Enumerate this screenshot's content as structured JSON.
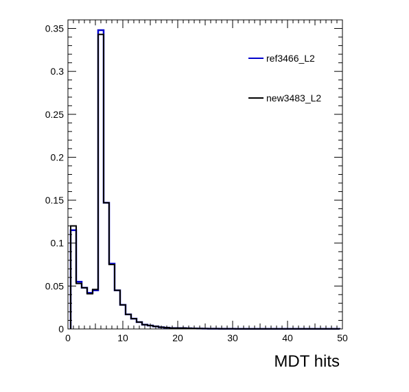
{
  "chart_data": {
    "type": "histogram",
    "title": "",
    "xlabel": "MDT hits",
    "ylabel": "",
    "xlim": [
      0,
      50
    ],
    "ylim": [
      0,
      0.36
    ],
    "bin_width": 1,
    "x_ticks": [
      0,
      10,
      20,
      30,
      40,
      50
    ],
    "x_tick_labels": [
      "0",
      "10",
      "20",
      "30",
      "40",
      "50"
    ],
    "y_ticks": [
      0,
      0.05,
      0.1,
      0.15,
      0.2,
      0.25,
      0.3,
      0.35
    ],
    "y_tick_labels": [
      "0",
      "0.05",
      "0.1",
      "0.15",
      "0.2",
      "0.25",
      "0.3",
      "0.35"
    ],
    "grid": false,
    "legend_position": "top-right",
    "series": [
      {
        "name": "ref3466_L2",
        "color": "#0000cc",
        "values": [
          0.115,
          0.055,
          0.048,
          0.042,
          0.045,
          0.348,
          0.147,
          0.076,
          0.045,
          0.028,
          0.017,
          0.012,
          0.008,
          0.005,
          0.004,
          0.003,
          0.002,
          0.0015,
          0.001,
          0.001,
          0.001,
          0.0008,
          0.0006,
          0.0005,
          0.0004,
          0.0003,
          0.0003,
          0.0002,
          0.0002,
          0.0002,
          0.0001,
          0.0001,
          0.0001,
          0.0001,
          0.0001,
          0.0001,
          0.0001,
          0.0001,
          0.0001,
          0.0001,
          0.0001,
          0.0001,
          0.0001,
          0.0001,
          0.0001,
          0.0001,
          0.0001,
          0.0001,
          0.0001
        ]
      },
      {
        "name": "new3483_L2",
        "color": "#000000",
        "values": [
          0.12,
          0.053,
          0.048,
          0.041,
          0.046,
          0.343,
          0.147,
          0.075,
          0.045,
          0.028,
          0.017,
          0.012,
          0.008,
          0.005,
          0.004,
          0.003,
          0.002,
          0.0015,
          0.001,
          0.001,
          0.001,
          0.0008,
          0.0006,
          0.0005,
          0.0004,
          0.0003,
          0.0003,
          0.0002,
          0.0002,
          0.0002,
          0.0001,
          0.0001,
          0.0001,
          0.0001,
          0.0001,
          0.0001,
          0.0001,
          0.0001,
          0.0001,
          0.0001,
          0.0001,
          0.0001,
          0.0001,
          0.0001,
          0.0001,
          0.0001,
          0.0001,
          0.0001,
          0.0001
        ]
      }
    ]
  }
}
